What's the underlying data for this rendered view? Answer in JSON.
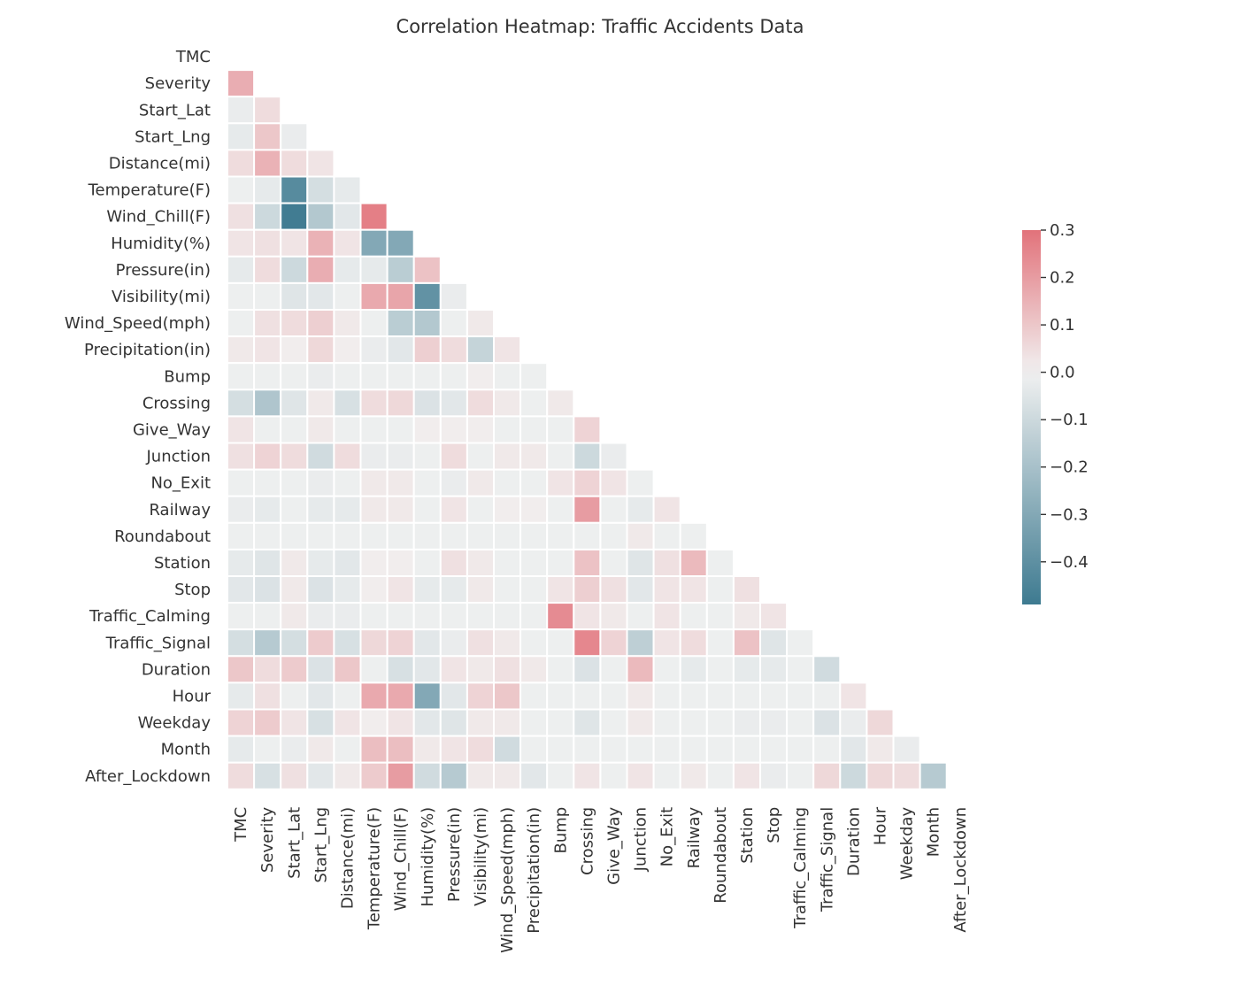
{
  "chart_data": {
    "type": "heatmap",
    "title": "Correlation Heatmap: Traffic Accidents Data",
    "mask": "upper-triangle including diagonal",
    "labels": [
      "TMC",
      "Severity",
      "Start_Lat",
      "Start_Lng",
      "Distance(mi)",
      "Temperature(F)",
      "Wind_Chill(F)",
      "Humidity(%)",
      "Pressure(in)",
      "Visibility(mi)",
      "Wind_Speed(mph)",
      "Precipitation(in)",
      "Bump",
      "Crossing",
      "Give_Way",
      "Junction",
      "No_Exit",
      "Railway",
      "Roundabout",
      "Station",
      "Stop",
      "Traffic_Calming",
      "Traffic_Signal",
      "Duration",
      "Hour",
      "Weekday",
      "Month",
      "After_Lockdown"
    ],
    "matrix": [
      [],
      [
        0.16
      ],
      [
        -0.02,
        0.05
      ],
      [
        -0.03,
        0.1,
        -0.02
      ],
      [
        0.05,
        0.15,
        0.05,
        0.03
      ],
      [
        -0.01,
        -0.03,
        -0.42,
        -0.08,
        -0.03
      ],
      [
        0.04,
        -0.1,
        -0.48,
        -0.17,
        -0.04,
        0.27
      ],
      [
        0.03,
        0.04,
        0.03,
        0.15,
        0.03,
        -0.3,
        -0.3
      ],
      [
        -0.03,
        0.05,
        -0.1,
        0.16,
        -0.03,
        -0.03,
        -0.15,
        0.11
      ],
      [
        -0.01,
        -0.01,
        -0.05,
        -0.04,
        -0.01,
        0.17,
        0.18,
        -0.39,
        -0.02
      ],
      [
        -0.01,
        0.04,
        0.05,
        0.08,
        0.02,
        -0.01,
        -0.15,
        -0.17,
        -0.01,
        0.02
      ],
      [
        0.02,
        0.03,
        0.01,
        0.06,
        0.01,
        -0.02,
        -0.04,
        0.08,
        0.05,
        -0.12,
        0.03
      ],
      [
        -0.01,
        -0.01,
        -0.01,
        -0.02,
        -0.01,
        -0.01,
        -0.01,
        -0.01,
        -0.01,
        0.01,
        -0.01,
        -0.01
      ],
      [
        -0.08,
        -0.18,
        -0.05,
        0.02,
        -0.07,
        0.05,
        0.06,
        -0.06,
        -0.04,
        0.05,
        0.02,
        -0.01,
        0.02
      ],
      [
        0.03,
        -0.01,
        -0.01,
        0.02,
        -0.01,
        -0.01,
        -0.01,
        0.01,
        0.01,
        0.01,
        -0.01,
        -0.01,
        -0.01,
        0.07
      ],
      [
        0.04,
        0.07,
        0.05,
        -0.09,
        0.05,
        -0.02,
        -0.02,
        -0.01,
        0.05,
        -0.01,
        0.02,
        0.02,
        -0.01,
        -0.1,
        -0.02
      ],
      [
        -0.01,
        -0.01,
        -0.01,
        -0.02,
        -0.01,
        0.02,
        0.02,
        -0.01,
        -0.02,
        0.02,
        -0.01,
        -0.01,
        0.03,
        0.07,
        0.03,
        -0.01
      ],
      [
        -0.02,
        -0.03,
        -0.01,
        -0.03,
        -0.03,
        0.02,
        0.02,
        -0.01,
        0.03,
        -0.01,
        0.01,
        0.01,
        -0.01,
        0.2,
        -0.01,
        -0.03,
        0.03
      ],
      [
        -0.01,
        -0.01,
        -0.01,
        -0.01,
        -0.01,
        -0.01,
        -0.01,
        -0.01,
        -0.01,
        -0.01,
        -0.01,
        -0.01,
        -0.01,
        -0.01,
        -0.01,
        0.02,
        -0.01,
        -0.01
      ],
      [
        -0.03,
        -0.05,
        0.02,
        -0.03,
        -0.04,
        0.01,
        0.01,
        -0.01,
        0.04,
        0.02,
        -0.01,
        -0.01,
        -0.01,
        0.11,
        -0.01,
        -0.05,
        0.04,
        0.13,
        -0.01
      ],
      [
        -0.04,
        -0.06,
        0.02,
        -0.06,
        -0.03,
        0.01,
        0.03,
        -0.03,
        -0.03,
        0.02,
        -0.01,
        -0.01,
        0.03,
        0.08,
        0.04,
        -0.04,
        0.03,
        0.03,
        -0.01,
        0.04
      ],
      [
        -0.01,
        -0.01,
        0.02,
        -0.02,
        -0.02,
        -0.01,
        -0.01,
        -0.01,
        -0.01,
        -0.01,
        -0.01,
        -0.01,
        0.24,
        0.03,
        0.02,
        -0.01,
        0.03,
        -0.01,
        -0.01,
        0.02,
        0.03
      ],
      [
        -0.08,
        -0.16,
        -0.08,
        0.09,
        -0.07,
        0.06,
        0.07,
        -0.04,
        -0.02,
        0.04,
        0.02,
        -0.01,
        -0.01,
        0.25,
        0.07,
        -0.14,
        0.03,
        0.05,
        -0.01,
        0.11,
        -0.05,
        -0.01
      ],
      [
        0.1,
        0.05,
        0.09,
        -0.06,
        0.1,
        -0.01,
        -0.07,
        -0.04,
        0.03,
        0.02,
        0.04,
        0.02,
        -0.01,
        -0.06,
        -0.01,
        0.13,
        -0.01,
        -0.03,
        -0.01,
        -0.03,
        -0.03,
        -0.01,
        -0.09
      ],
      [
        -0.03,
        0.04,
        -0.01,
        -0.04,
        -0.01,
        0.17,
        0.17,
        -0.3,
        -0.04,
        0.07,
        0.1,
        -0.01,
        -0.01,
        -0.01,
        -0.01,
        0.02,
        -0.01,
        -0.01,
        -0.01,
        -0.01,
        -0.01,
        -0.01,
        -0.01,
        0.03
      ],
      [
        0.07,
        0.09,
        0.03,
        -0.07,
        0.03,
        0.01,
        0.03,
        -0.04,
        -0.05,
        0.02,
        0.02,
        -0.01,
        -0.01,
        -0.05,
        -0.01,
        0.02,
        -0.01,
        -0.01,
        -0.01,
        -0.02,
        -0.02,
        -0.01,
        -0.06,
        -0.02,
        0.06
      ],
      [
        -0.03,
        -0.01,
        -0.02,
        0.02,
        -0.01,
        0.12,
        0.12,
        0.02,
        0.03,
        0.05,
        -0.09,
        -0.01,
        -0.01,
        -0.01,
        -0.01,
        -0.01,
        -0.01,
        -0.01,
        -0.01,
        -0.01,
        -0.01,
        -0.01,
        -0.01,
        -0.04,
        0.02,
        -0.02
      ],
      [
        0.05,
        -0.07,
        0.04,
        -0.04,
        0.02,
        0.09,
        0.2,
        -0.09,
        -0.16,
        0.02,
        0.02,
        -0.04,
        -0.01,
        0.03,
        -0.01,
        0.03,
        -0.01,
        0.02,
        -0.01,
        0.03,
        -0.02,
        -0.01,
        0.06,
        -0.1,
        0.06,
        0.05,
        -0.16
      ]
    ],
    "colorbar": {
      "vmin": -0.49,
      "vmax": 0.3,
      "ticks": [
        0.3,
        0.2,
        0.1,
        0.0,
        -0.1,
        -0.2,
        -0.3,
        -0.4
      ],
      "tick_labels": [
        "0.3",
        "0.2",
        "0.1",
        "0.0",
        "−0.1",
        "−0.2",
        "−0.3",
        "−0.4"
      ],
      "colormap": "diverging blue-white-red",
      "colors": {
        "negative": "#3d7a90",
        "center": "#f1f1f1",
        "positive": "#e2727a"
      }
    },
    "grid": false,
    "legend": "colorbar right"
  }
}
